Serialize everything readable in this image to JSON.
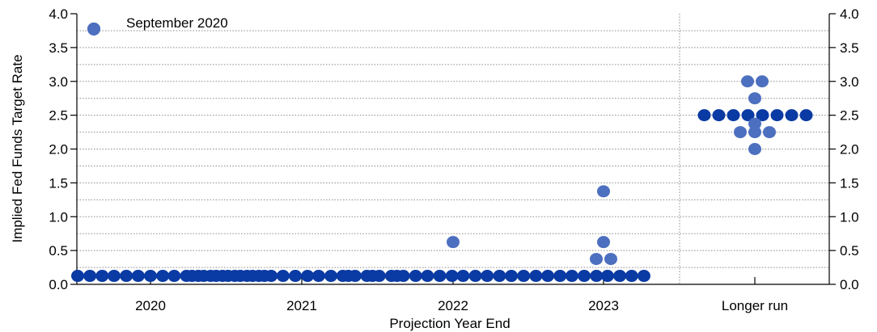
{
  "chart_data": {
    "type": "scatter",
    "legend": {
      "label": "September 2020",
      "placement": "top-left"
    },
    "xlabel": "Projection Year End",
    "ylabel": "Implied Fed Funds Target Rate",
    "ylim": [
      0.0,
      4.0
    ],
    "y_ticks": [
      "0.0",
      "0.5",
      "1.0",
      "1.5",
      "2.0",
      "2.5",
      "3.0",
      "3.5",
      "4.0"
    ],
    "grid": {
      "y_dotted_every": 0.25
    },
    "categories": [
      "2020",
      "2021",
      "2022",
      "2023",
      "Longer run"
    ],
    "colors": {
      "fomc_dot": "#4d6fbf",
      "market_dot": "#0a3aa3"
    },
    "series": [
      {
        "points": [
          {
            "x": "2020",
            "y": 3.78
          },
          {
            "x": "2022",
            "y": 0.625
          },
          {
            "x": "2023",
            "y": 0.375
          },
          {
            "x": "2023",
            "y": 0.375
          },
          {
            "x": "2023",
            "y": 0.625
          },
          {
            "x": "2023",
            "y": 1.375
          },
          {
            "x": "Longer run",
            "y": 3.0
          },
          {
            "x": "Longer run",
            "y": 3.0
          },
          {
            "x": "Longer run",
            "y": 2.75
          },
          {
            "x": "Longer run",
            "y": 2.375
          },
          {
            "x": "Longer run",
            "y": 2.25
          },
          {
            "x": "Longer run",
            "y": 2.25
          },
          {
            "x": "Longer run",
            "y": 2.25
          },
          {
            "x": "Longer run",
            "y": 2.0
          }
        ]
      },
      {
        "y": 0.125,
        "dates": [
          "2019-07-01",
          "2019-08-01",
          "2019-09-01",
          "2019-10-01",
          "2019-11-01",
          "2019-12-01",
          "2020-01-01",
          "2020-02-01",
          "2020-03-01",
          "2020-04-01",
          "2020-04-15",
          "2020-05-01",
          "2020-05-15",
          "2020-06-01",
          "2020-06-15",
          "2020-07-01",
          "2020-07-15",
          "2020-08-01",
          "2020-08-15",
          "2020-09-01",
          "2020-09-15",
          "2020-10-01",
          "2020-10-15",
          "2020-11-01",
          "2020-12-01",
          "2021-01-01",
          "2021-02-01",
          "2021-03-01",
          "2021-04-01",
          "2021-05-01",
          "2021-05-15",
          "2021-06-01",
          "2021-07-01",
          "2021-07-15",
          "2021-08-01",
          "2021-09-01",
          "2021-09-15",
          "2021-10-01",
          "2021-11-01",
          "2021-12-01",
          "2022-01-01",
          "2022-02-01",
          "2022-03-01",
          "2022-04-01",
          "2022-05-01",
          "2022-06-01",
          "2022-07-01",
          "2022-08-01",
          "2022-09-01",
          "2022-10-01",
          "2022-11-01",
          "2022-12-01",
          "2023-01-01",
          "2023-02-01",
          "2023-03-01",
          "2023-04-01",
          "2023-05-01",
          "2023-06-01"
        ]
      },
      {
        "x": "Longer run",
        "y": 2.5,
        "count": 8
      }
    ]
  }
}
